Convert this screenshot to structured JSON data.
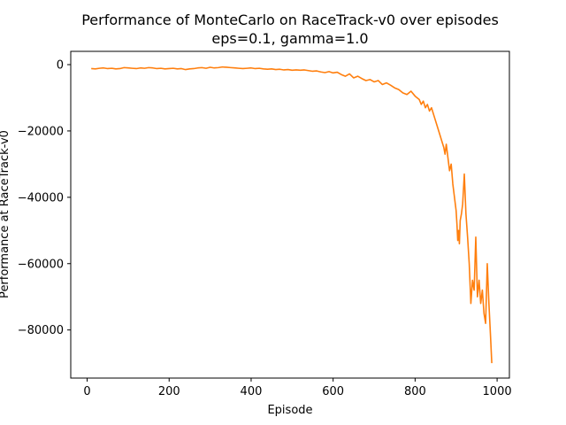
{
  "chart_data": {
    "type": "line",
    "title": "Performance of MonteCarlo on RaceTrack-v0 over episodes",
    "subtitle": "eps=0.1, gamma=1.0",
    "xlabel": "Episode",
    "ylabel": "Performance at RaceTrack-v0",
    "xlim": [
      -40,
      1030
    ],
    "ylim": [
      -94500,
      4000
    ],
    "x_ticks": [
      0,
      200,
      400,
      600,
      800,
      1000
    ],
    "y_ticks": [
      0,
      -20000,
      -40000,
      -60000,
      -80000
    ],
    "x_tick_labels": [
      "0",
      "200",
      "400",
      "600",
      "800",
      "1000"
    ],
    "y_tick_labels": [
      "0",
      "−20000",
      "−40000",
      "−60000",
      "−80000"
    ],
    "grid": false,
    "legend": "none",
    "series": [
      {
        "color": "#ff7f0e",
        "x": [
          10,
          20,
          30,
          40,
          50,
          60,
          70,
          80,
          90,
          100,
          110,
          120,
          130,
          140,
          150,
          160,
          170,
          180,
          190,
          200,
          210,
          220,
          230,
          240,
          250,
          260,
          270,
          280,
          290,
          300,
          310,
          320,
          330,
          340,
          350,
          360,
          370,
          380,
          390,
          400,
          410,
          420,
          430,
          440,
          450,
          460,
          470,
          480,
          490,
          500,
          510,
          520,
          530,
          540,
          550,
          560,
          570,
          580,
          590,
          600,
          610,
          620,
          630,
          640,
          650,
          660,
          670,
          680,
          690,
          700,
          710,
          720,
          730,
          740,
          750,
          760,
          770,
          780,
          790,
          800,
          810,
          815,
          820,
          825,
          830,
          835,
          840,
          845,
          850,
          855,
          860,
          865,
          870,
          873,
          876,
          880,
          884,
          888,
          892,
          896,
          900,
          902,
          904,
          906,
          908,
          910,
          913,
          916,
          920,
          924,
          928,
          932,
          936,
          940,
          944,
          948,
          952,
          956,
          960,
          964,
          968,
          972,
          976,
          980,
          984,
          987
        ],
        "y": [
          -1200,
          -1300,
          -1100,
          -1000,
          -1200,
          -1100,
          -1300,
          -1200,
          -900,
          -1000,
          -1100,
          -1200,
          -1000,
          -1100,
          -900,
          -1000,
          -1200,
          -1100,
          -1300,
          -1200,
          -1100,
          -1300,
          -1200,
          -1500,
          -1300,
          -1200,
          -1000,
          -900,
          -1100,
          -800,
          -1000,
          -900,
          -700,
          -800,
          -900,
          -1000,
          -1100,
          -1200,
          -1100,
          -1000,
          -1200,
          -1100,
          -1300,
          -1400,
          -1300,
          -1500,
          -1400,
          -1600,
          -1500,
          -1700,
          -1600,
          -1700,
          -1600,
          -1800,
          -2000,
          -1900,
          -2200,
          -2400,
          -2100,
          -2500,
          -2300,
          -3000,
          -3500,
          -2800,
          -4000,
          -3500,
          -4200,
          -4800,
          -4500,
          -5200,
          -4800,
          -6000,
          -5500,
          -6200,
          -7000,
          -7500,
          -8500,
          -9000,
          -8000,
          -9500,
          -10500,
          -12000,
          -11000,
          -13000,
          -12000,
          -14000,
          -13000,
          -15000,
          -17000,
          -19000,
          -21000,
          -23000,
          -25000,
          -27000,
          -24000,
          -28000,
          -32000,
          -30000,
          -36000,
          -40000,
          -44000,
          -48000,
          -53000,
          -50000,
          -54000,
          -47000,
          -45000,
          -42000,
          -33000,
          -45000,
          -52000,
          -60000,
          -72000,
          -65000,
          -68000,
          -52000,
          -70000,
          -65000,
          -72000,
          -68000,
          -75000,
          -78000,
          -60000,
          -72000,
          -82000,
          -90000
        ]
      }
    ]
  }
}
